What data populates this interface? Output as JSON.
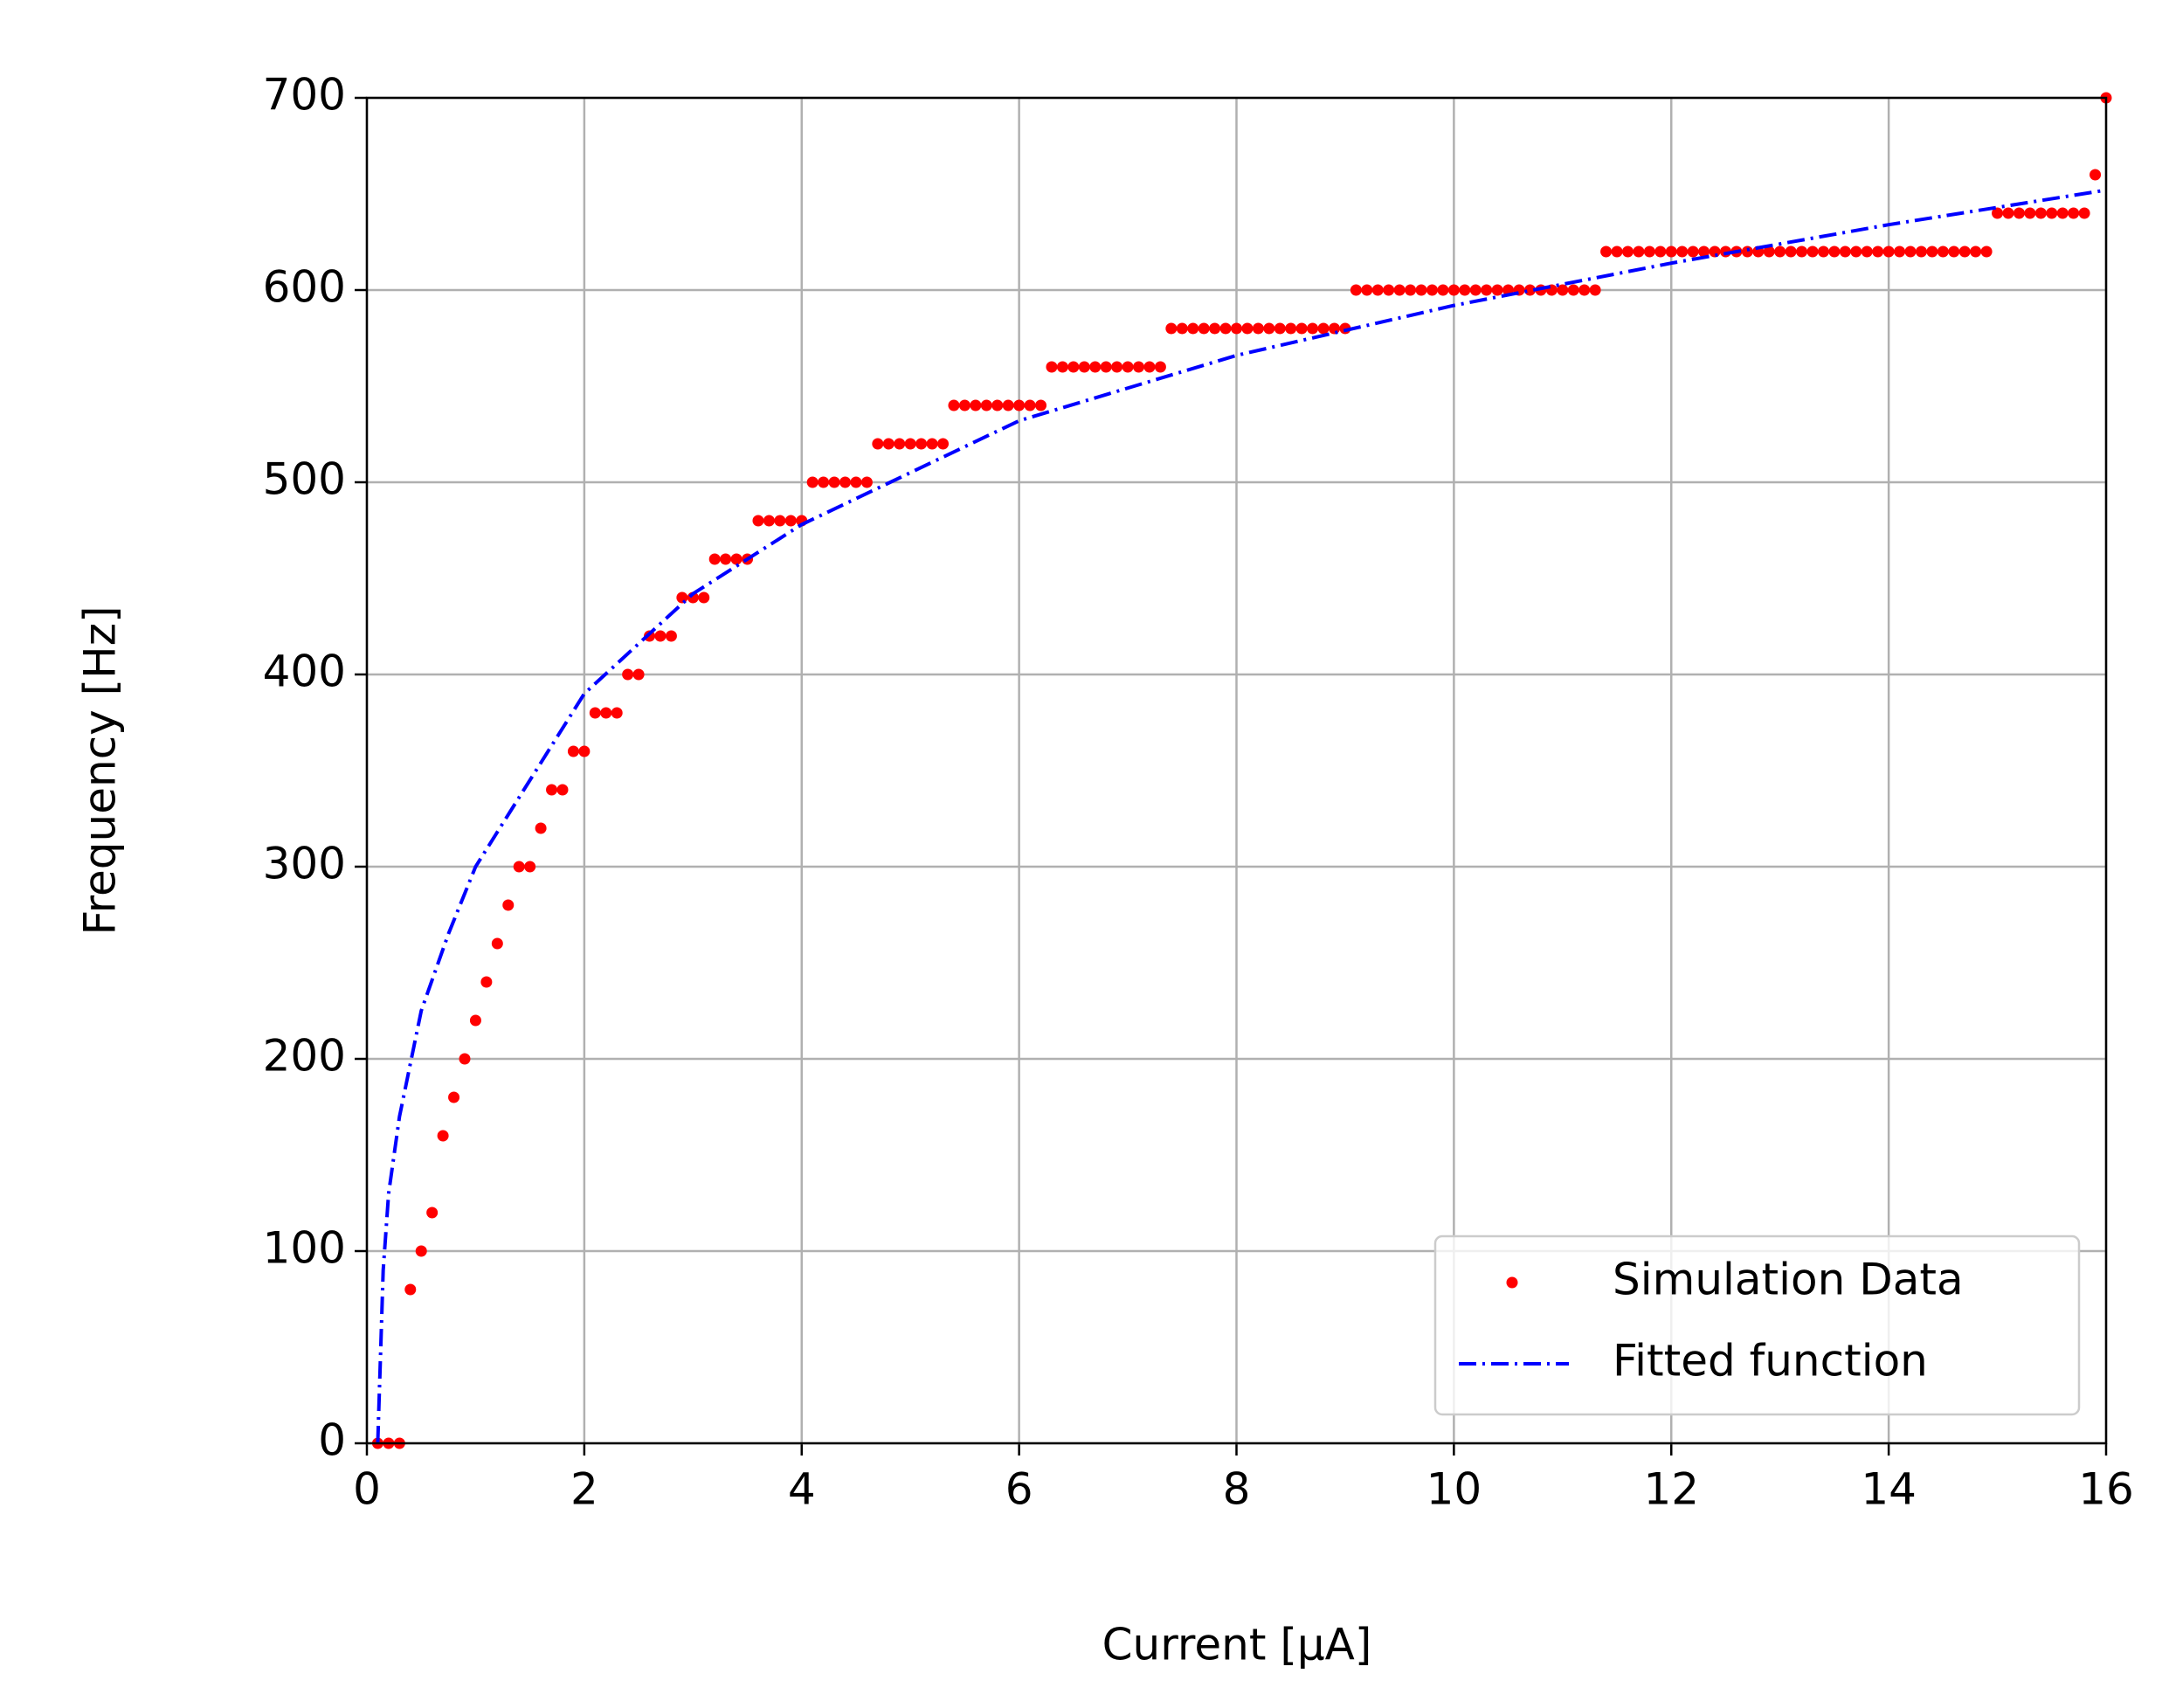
{
  "chart_data": {
    "type": "scatter",
    "xlabel": "Current [µA]",
    "ylabel": "Frequency [Hz]",
    "xlim": [
      0,
      16
    ],
    "ylim": [
      0,
      700
    ],
    "xticks": [
      0,
      2,
      4,
      6,
      8,
      10,
      12,
      14,
      16
    ],
    "yticks": [
      0,
      100,
      200,
      300,
      400,
      500,
      600,
      700
    ],
    "grid": true,
    "legend": "lower right",
    "series": [
      {
        "name": "Simulation Data",
        "type": "scatter",
        "color": "#ff0000",
        "x": [
          0.1,
          0.2,
          0.3,
          0.4,
          0.5,
          0.6,
          0.7,
          0.8,
          0.9,
          1.0,
          1.1,
          1.2,
          1.3,
          1.4,
          1.5,
          1.6,
          1.7,
          1.8,
          1.9,
          2.0,
          2.1,
          2.2,
          2.3,
          2.4,
          2.5,
          2.6,
          2.7,
          2.8,
          2.9,
          3.0,
          3.1,
          3.2,
          3.3,
          3.4,
          3.5,
          3.6,
          3.7,
          3.8,
          3.9,
          4.0,
          4.1,
          4.2,
          4.3,
          4.4,
          4.5,
          4.6,
          4.7,
          4.8,
          4.9,
          5.0,
          5.1,
          5.2,
          5.3,
          5.4,
          5.5,
          5.6,
          5.7,
          5.8,
          5.9,
          6.0,
          6.1,
          6.2,
          6.3,
          6.4,
          6.5,
          6.6,
          6.7,
          6.8,
          6.9,
          7.0,
          7.1,
          7.2,
          7.3,
          7.4,
          7.5,
          7.6,
          7.7,
          7.8,
          7.9,
          8.0,
          8.1,
          8.2,
          8.3,
          8.4,
          8.5,
          8.6,
          8.7,
          8.8,
          8.9,
          9.0,
          9.1,
          9.2,
          9.3,
          9.4,
          9.5,
          9.6,
          9.7,
          9.8,
          9.9,
          10.0,
          10.1,
          10.2,
          10.3,
          10.4,
          10.5,
          10.6,
          10.7,
          10.8,
          10.9,
          11.0,
          11.1,
          11.2,
          11.3,
          11.4,
          11.5,
          11.6,
          11.7,
          11.8,
          11.9,
          12.0,
          12.1,
          12.2,
          12.3,
          12.4,
          12.5,
          12.6,
          12.7,
          12.8,
          12.9,
          13.0,
          13.1,
          13.2,
          13.3,
          13.4,
          13.5,
          13.6,
          13.7,
          13.8,
          13.9,
          14.0,
          14.1,
          14.2,
          14.3,
          14.4,
          14.5,
          14.6,
          14.7,
          14.8,
          14.9,
          15.0,
          15.1,
          15.2,
          15.3,
          15.4,
          15.5,
          15.6,
          15.7,
          15.8,
          15.9,
          16.0
        ],
        "values": [
          0,
          0,
          0,
          80,
          100,
          120,
          160,
          180,
          200,
          220,
          240,
          260,
          280,
          300,
          300,
          320,
          340,
          340,
          360,
          360,
          380,
          380,
          380,
          400,
          400,
          420,
          420,
          420,
          440,
          440,
          440,
          460,
          460,
          460,
          460,
          480,
          480,
          480,
          480,
          480,
          500,
          500,
          500,
          500,
          500,
          500,
          520,
          520,
          520,
          520,
          520,
          520,
          520,
          540,
          540,
          540,
          540,
          540,
          540,
          540,
          540,
          540,
          560,
          560,
          560,
          560,
          560,
          560,
          560,
          560,
          560,
          560,
          560,
          580,
          580,
          580,
          580,
          580,
          580,
          580,
          580,
          580,
          580,
          580,
          580,
          580,
          580,
          580,
          580,
          580,
          600,
          600,
          600,
          600,
          600,
          600,
          600,
          600,
          600,
          600,
          600,
          600,
          600,
          600,
          600,
          600,
          600,
          600,
          600,
          600,
          600,
          600,
          600,
          620,
          620,
          620,
          620,
          620,
          620,
          620,
          620,
          620,
          620,
          620,
          620,
          620,
          620,
          620,
          620,
          620,
          620,
          620,
          620,
          620,
          620,
          620,
          620,
          620,
          620,
          620,
          620,
          620,
          620,
          620,
          620,
          620,
          620,
          620,
          620,
          640,
          640,
          640,
          640,
          640,
          640,
          640,
          640,
          640,
          660,
          700
        ]
      },
      {
        "name": "Fitted function",
        "type": "line",
        "color": "#0000ff",
        "x": [
          0.1,
          0.15,
          0.2,
          0.3,
          0.5,
          0.75,
          1,
          1.5,
          2,
          3,
          4,
          6,
          8,
          10,
          12,
          14,
          16
        ],
        "values": [
          0,
          90,
          130,
          170,
          225,
          265,
          300,
          345,
          390,
          442,
          478,
          532,
          566,
          592,
          614,
          634,
          652
        ]
      }
    ]
  }
}
